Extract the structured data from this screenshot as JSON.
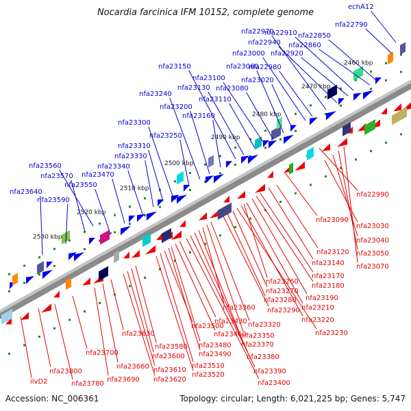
{
  "title": "Nocardia farcinica IFM 10152, complete genome",
  "footer": {
    "accession": "Accession: NC_006361",
    "summary": "Topology: circular; Length: 6,021,225 bp; Genes: 5,747"
  },
  "colors": {
    "forward_label": "#0000cc",
    "reverse_label": "#e00000",
    "forward_gene": "#0000ee",
    "reverse_gene": "#ee0000",
    "tick": "#1a8a1a",
    "backbone": "#707070"
  },
  "scale_labels": [
    "2460 kbp",
    "2470 kbp",
    "2480 kbp",
    "2490 kbp",
    "2500 kbp",
    "2510 kbp",
    "2520 kbp",
    "2530 kbp"
  ],
  "forward_labels": [
    "echA12",
    "nfa22790",
    "nfa22850",
    "nfa22860",
    "nfa22910",
    "nfa22920",
    "nfa22940",
    "nfa22970",
    "nfa22980",
    "nfa23000",
    "nfa23020",
    "nfa23060",
    "nfa23080",
    "nfa23100",
    "nfa23110",
    "nfa23130",
    "nfa23150",
    "nfa23160",
    "nfa23200",
    "nfa23240",
    "nfa23250",
    "nfa23300",
    "nfa23310",
    "nfa23330",
    "nfa23340",
    "nfa23470",
    "nfa23550",
    "nfa23560",
    "nfa23570",
    "nfa23590",
    "nfa23640"
  ],
  "reverse_labels": [
    "nfa22990",
    "nfa23030",
    "nfa23040",
    "nfa23050",
    "nfa23070",
    "nfa23090",
    "nfa23120",
    "nfa23140",
    "nfa23170",
    "nfa23180",
    "nfa23190",
    "nfa23210",
    "nfa23220",
    "nfa23230",
    "nfa23260",
    "nfa23270",
    "nfa23280",
    "nfa23290",
    "nfa23320",
    "nfa23350",
    "nfa23360",
    "nfa23370",
    "nfa23380",
    "nfa23390",
    "nfa23400",
    "nfa23430",
    "nfa23460",
    "nfa23480",
    "nfa23490",
    "nfa23500",
    "nfa23510",
    "nfa23520",
    "nfa23580",
    "nfa23600",
    "nfa23610",
    "nfa23620",
    "nfa23630",
    "nfa23660",
    "nfa23690",
    "nfa23700",
    "nfa23780",
    "nfa23800",
    "ilvD2"
  ]
}
